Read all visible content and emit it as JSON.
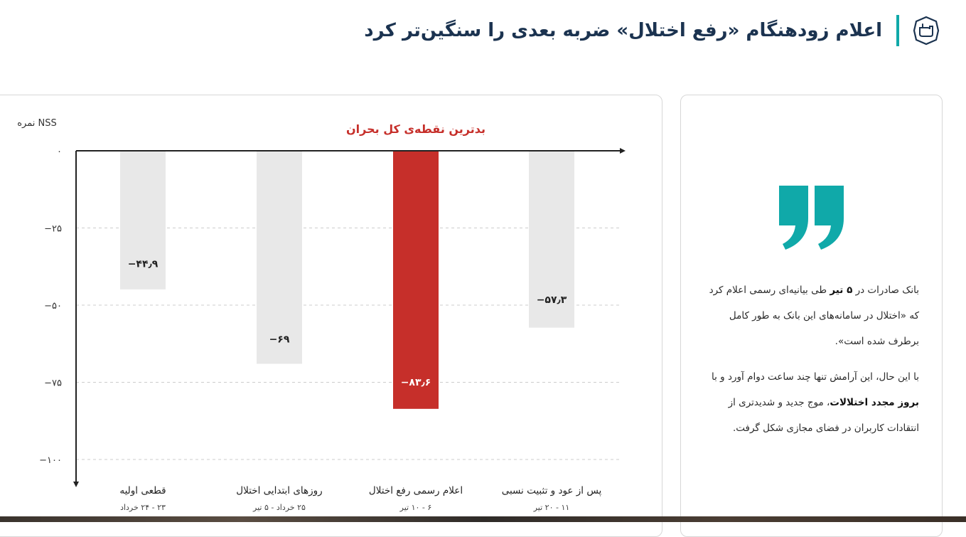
{
  "header": {
    "title": "اعلام زودهنگام «رفع اختلال» ضربه بعدی را سنگین‌تر کرد",
    "logo_icon": "hand-pointer-icon",
    "accent": "#10a9a9"
  },
  "chart_data": {
    "type": "bar",
    "title": "بدترین نقطه‌ی کل بحران",
    "ylabel": "نمره NSS",
    "ylim": [
      -100,
      0
    ],
    "yticks": [
      0,
      -25,
      -50,
      -75,
      -100
    ],
    "ytick_labels": [
      "۰",
      "−۲۵",
      "−۵۰",
      "−۷۵",
      "−۱۰۰"
    ],
    "categories": [
      "قطعی اولیه",
      "روزهای ابتدایی اختلال",
      "اعلام رسمی رفع اختلال",
      "پس از عود و تثبیت نسبی"
    ],
    "subcategories": [
      "۲۳ - ۲۴ خرداد",
      "۲۵ خرداد - ۵ تیر",
      "۶ - ۱۰ تیر",
      "۱۱ - ۲۰ تیر"
    ],
    "values": [
      -44.9,
      -69,
      -83.6,
      -57.3
    ],
    "value_labels": [
      "−۴۴٫۹",
      "−۶۹",
      "−۸۳٫۶",
      "−۵۷٫۳"
    ],
    "highlight_index": 2,
    "colors": {
      "bar": "#e8e8e8",
      "highlight": "#c62f2a",
      "title": "#c62f2a",
      "axis": "#222222",
      "grid": "#cccccc"
    },
    "grid": true
  },
  "quote": {
    "icon": "quote-icon",
    "icon_color": "#10a9a9",
    "p1_a": "بانک صادرات در ",
    "p1_bold": "۵ تیر",
    "p1_b": " طی بیانیه‌ای رسمی اعلام کرد که «اختلال در سامانه‌های این بانک به طور کامل برطرف شده است».",
    "p2_a": "با این حال، این آرامش تنها چند ساعت دوام آورد و با ",
    "p2_bold": "بروز مجدد اختلالات",
    "p2_b": "، موج جدید و شدیدتری از انتقادات کاربران در فضای مجازی شکل گرفت."
  }
}
